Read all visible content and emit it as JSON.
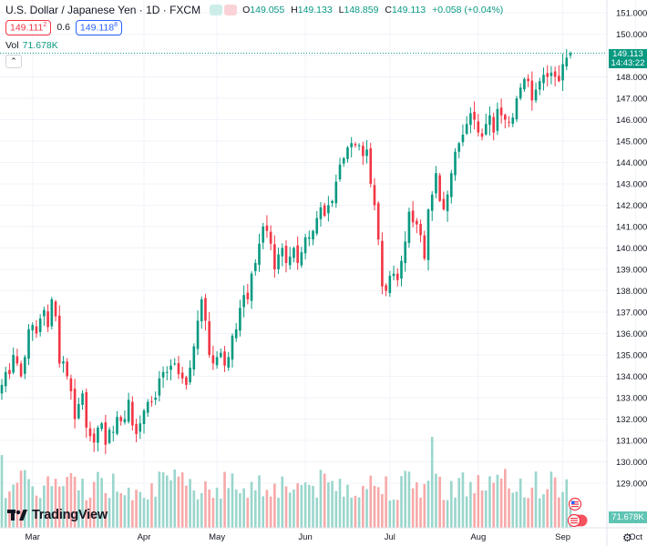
{
  "header": {
    "symbol_title": "U.S. Dollar / Japanese Yen · 1D · FXCM",
    "open_label": "O",
    "open": "149.055",
    "high_label": "H",
    "high": "149.133",
    "low_label": "L",
    "low": "148.859",
    "close_label": "C",
    "close": "149.113",
    "change": "+0.058 (+0.04%)"
  },
  "trade": {
    "sell_price": "149.111",
    "sell_sup": "2",
    "spread": "0.6",
    "buy_price": "149.118",
    "buy_sup": "8"
  },
  "volume": {
    "label": "Vol",
    "value": "71.678K"
  },
  "price_tag": {
    "price": "149.113",
    "countdown": "14:43:22"
  },
  "logo": {
    "name": "TradingView"
  },
  "colors": {
    "up": "#089981",
    "down": "#f23645",
    "vol_up": "#9ad6cd",
    "vol_down": "#f7a9a9",
    "grid": "#f0f3fa"
  },
  "chart_data": {
    "type": "candlestick",
    "y_axis_ticks": [
      "151.000",
      "150.000",
      "149.000",
      "148.000",
      "147.000",
      "146.000",
      "145.000",
      "144.000",
      "143.000",
      "142.000",
      "141.000",
      "140.000",
      "139.000",
      "138.000",
      "137.000",
      "136.000",
      "135.000",
      "134.000",
      "133.000",
      "132.000",
      "131.000",
      "130.000",
      "129.000"
    ],
    "x_axis_ticks": [
      "Mar",
      "Apr",
      "May",
      "Jun",
      "Jul",
      "Aug",
      "Sep",
      "Oct"
    ],
    "ylim": [
      128.4,
      151.3
    ],
    "last_price": 149.113,
    "close_series": [
      133.6,
      134.2,
      134.1,
      135.0,
      134.6,
      134.0,
      134.9,
      136.2,
      136.4,
      136.0,
      136.7,
      137.1,
      136.3,
      137.6,
      136.8,
      134.6,
      134.7,
      134.0,
      133.3,
      132.0,
      132.7,
      133.2,
      131.6,
      131.2,
      130.9,
      131.6,
      131.8,
      130.8,
      131.5,
      131.4,
      132.1,
      131.9,
      132.0,
      132.9,
      131.7,
      131.3,
      131.8,
      132.4,
      132.8,
      132.8,
      133.0,
      133.9,
      134.2,
      134.2,
      134.5,
      134.6,
      134.1,
      133.9,
      133.6,
      134.4,
      135.4,
      136.6,
      137.6,
      136.6,
      135.0,
      134.6,
      134.9,
      135.1,
      134.5,
      134.9,
      135.9,
      136.2,
      137.2,
      137.8,
      137.6,
      138.8,
      139.3,
      140.2,
      141.0,
      140.8,
      140.2,
      139.0,
      139.7,
      140.0,
      139.3,
      139.6,
      140.0,
      139.3,
      139.8,
      140.5,
      140.5,
      140.8,
      141.4,
      141.9,
      141.5,
      142.0,
      142.2,
      143.1,
      143.9,
      144.2,
      144.7,
      144.9,
      144.8,
      144.8,
      144.3,
      144.6,
      143.0,
      142.0,
      140.4,
      138.2,
      138.0,
      138.7,
      138.8,
      138.5,
      139.4,
      140.3,
      141.7,
      141.2,
      141.1,
      140.6,
      139.5,
      141.8,
      142.5,
      143.5,
      142.2,
      141.8,
      142.5,
      143.5,
      144.5,
      144.9,
      145.3,
      145.8,
      146.3,
      146.0,
      145.4,
      145.2,
      145.8,
      146.2,
      145.4,
      146.5,
      146.2,
      146.0,
      145.9,
      146.1,
      147.0,
      147.5,
      147.9,
      147.8,
      146.9,
      147.4,
      147.8,
      148.1,
      148.0,
      148.2,
      148.0,
      147.8,
      148.6,
      148.9,
      149.1
    ],
    "series": [
      {
        "name": "Vol"
      }
    ]
  }
}
